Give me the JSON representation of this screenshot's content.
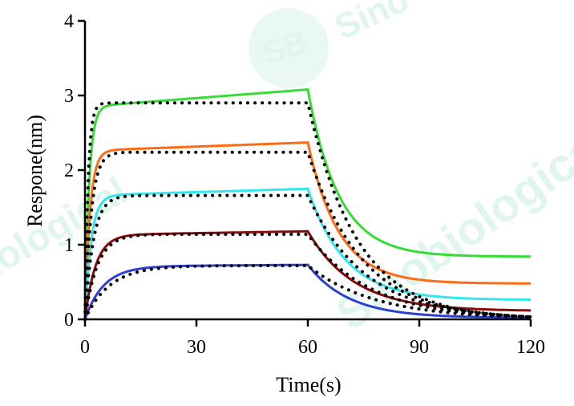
{
  "chart_data": {
    "type": "line",
    "title": "",
    "xlabel": "Time(s)",
    "ylabel": "Respone(nm)",
    "xlim": [
      0,
      120
    ],
    "ylim": [
      0,
      4
    ],
    "xticks": [
      0,
      30,
      60,
      90,
      120
    ],
    "yticks": [
      0,
      1,
      2,
      3,
      4
    ],
    "grid": false,
    "legend": "none",
    "association_end": 60,
    "watermark": [
      "SB",
      "Sino",
      "Sinobiological",
      "Sinobiological"
    ],
    "series": [
      {
        "color": "#33dd33",
        "plateau_start": 2.85,
        "value_at_60": 3.08,
        "k_on": 0.9,
        "final": 0.84,
        "k_off": 0.12
      },
      {
        "color": "#ff6a13",
        "plateau_start": 2.26,
        "value_at_60": 2.37,
        "k_on": 0.75,
        "final": 0.48,
        "k_off": 0.12
      },
      {
        "color": "#33e6ee",
        "plateau_start": 1.66,
        "value_at_60": 1.75,
        "k_on": 0.6,
        "final": 0.26,
        "k_off": 0.1
      },
      {
        "color": "#8b0a0a",
        "plateau_start": 1.13,
        "value_at_60": 1.18,
        "k_on": 0.35,
        "final": 0.11,
        "k_off": 0.08
      },
      {
        "color": "#2a3fd6",
        "plateau_start": 0.71,
        "value_at_60": 0.73,
        "k_on": 0.2,
        "final": 0.02,
        "k_off": 0.09
      }
    ],
    "fits": [
      {
        "color": "#000000",
        "plateau": 2.9,
        "k_on": 1.2,
        "final": 0.0,
        "k_off": 0.075
      },
      {
        "color": "#000000",
        "plateau": 2.24,
        "k_on": 0.6,
        "final": 0.0,
        "k_off": 0.07
      },
      {
        "color": "#000000",
        "plateau": 1.66,
        "k_on": 0.45,
        "final": 0.0,
        "k_off": 0.065
      },
      {
        "color": "#000000",
        "plateau": 1.14,
        "k_on": 0.3,
        "final": 0.0,
        "k_off": 0.06
      },
      {
        "color": "#000000",
        "plateau": 0.72,
        "k_on": 0.15,
        "final": 0.0,
        "k_off": 0.055
      }
    ]
  }
}
